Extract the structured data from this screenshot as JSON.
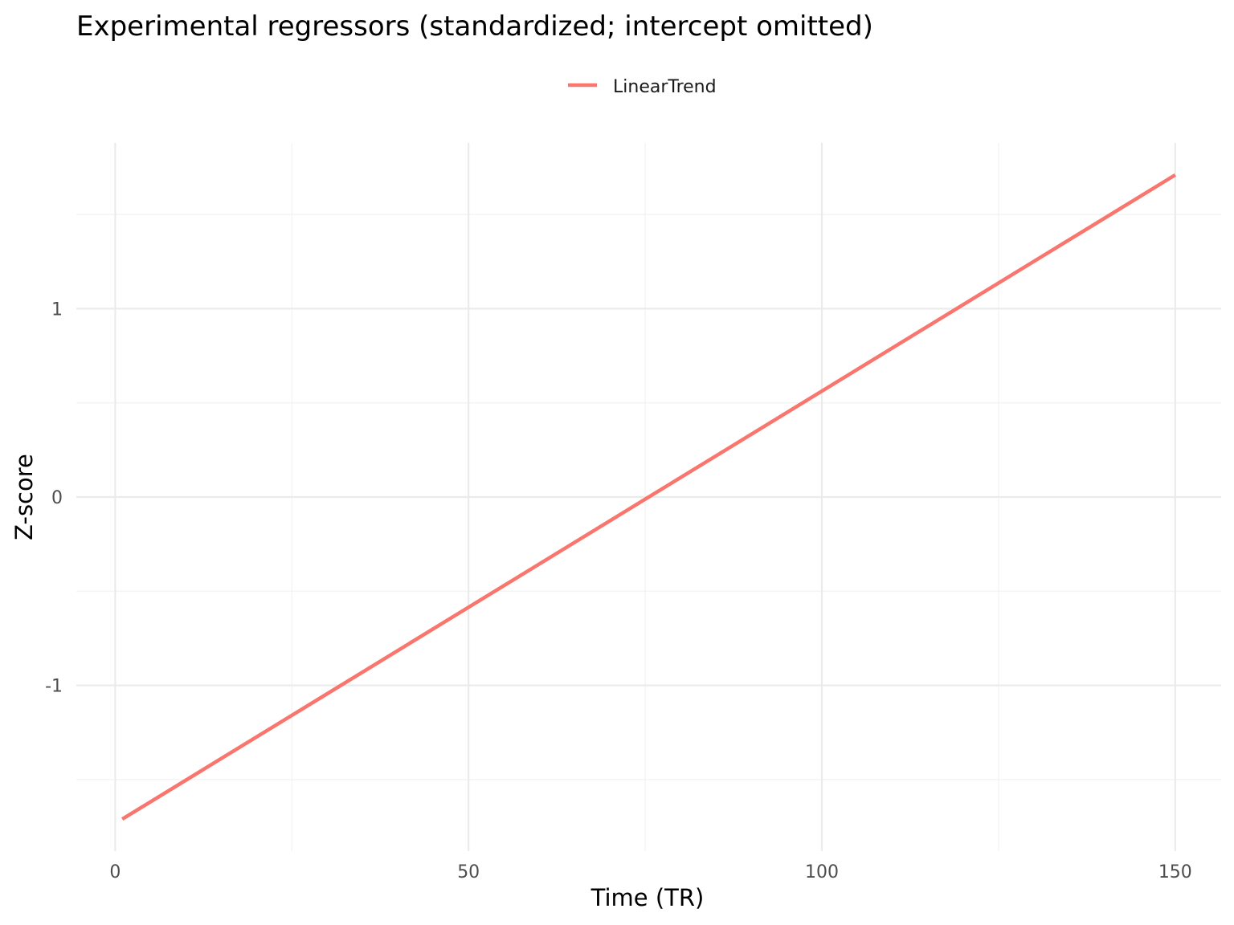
{
  "chart_data": {
    "type": "line",
    "title": "Experimental regressors (standardized; intercept omitted)",
    "xlabel": "Time (TR)",
    "ylabel": "Z-score",
    "xlim": [
      -5.5,
      156.5
    ],
    "ylim": [
      -1.88,
      1.88
    ],
    "x_ticks": [
      0,
      50,
      100,
      150
    ],
    "x_minor_ticks": [
      25,
      75,
      125
    ],
    "y_ticks": [
      -1,
      0,
      1
    ],
    "y_minor_ticks": [
      -1.5,
      -0.5,
      0.5,
      1.5
    ],
    "grid": true,
    "legend_position": "top",
    "series": [
      {
        "name": "LinearTrend",
        "color": "#F8766D",
        "x": [
          1,
          150
        ],
        "y": [
          -1.71,
          1.71
        ]
      }
    ]
  }
}
